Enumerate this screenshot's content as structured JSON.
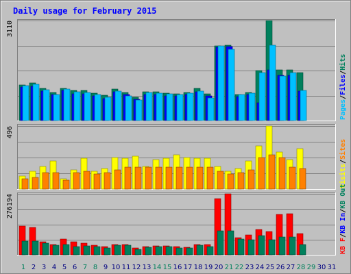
{
  "title": "Daily usage for February 2015",
  "colors": {
    "background": "#c0c0c0",
    "frame_dark": "#808080",
    "frame_light": "#ffffff",
    "title_text": "#0000ff",
    "weekday_text": "#000080",
    "weekend_text": "#00805c",
    "hits": "#00805c",
    "files": "#0000ff",
    "pages": "#00c0ff",
    "visits": "#ffff00",
    "sites": "#ff8000",
    "kbin": "#0000ff",
    "kbout": "#00805c",
    "kbf": "#ff0000",
    "separator": "#000000"
  },
  "chart_data": {
    "type": "bar",
    "title": "Daily usage for February 2015",
    "days": [
      "1",
      "2",
      "3",
      "4",
      "5",
      "6",
      "7",
      "8",
      "9",
      "10",
      "11",
      "12",
      "13",
      "14",
      "15",
      "16",
      "17",
      "18",
      "19",
      "20",
      "21",
      "22",
      "23",
      "24",
      "25",
      "26",
      "27",
      "28",
      "29",
      "30",
      "31"
    ],
    "weekend_days": [
      "1",
      "7",
      "8",
      "14",
      "15",
      "21",
      "22",
      "28",
      "29"
    ],
    "panels": [
      {
        "id": "top",
        "max_label": "3110",
        "ymax": 3110,
        "legend": [
          "Pages",
          "/",
          "Files",
          "/",
          "Hits"
        ],
        "series": [
          {
            "name": "Hits",
            "values": [
              1110,
              1180,
              1000,
              880,
              1010,
              930,
              930,
              860,
              780,
              970,
              870,
              720,
              900,
              890,
              860,
              840,
              880,
              1010,
              830,
              2330,
              2350,
              800,
              870,
              1550,
              3110,
              1580,
              1580,
              1500,
              0,
              0,
              0
            ]
          },
          {
            "name": "Files",
            "values": [
              1040,
              1070,
              920,
              800,
              940,
              840,
              840,
              760,
              690,
              890,
              800,
              660,
              810,
              800,
              760,
              770,
              800,
              900,
              760,
              2270,
              2300,
              740,
              810,
              560,
              1570,
              1400,
              1410,
              910,
              0,
              0,
              0
            ]
          },
          {
            "name": "Pages",
            "values": [
              1090,
              1130,
              960,
              820,
              990,
              900,
              880,
              820,
              720,
              920,
              760,
              640,
              870,
              850,
              830,
              820,
              860,
              910,
              700,
              2330,
              2220,
              800,
              850,
              1500,
              2350,
              1390,
              1500,
              940,
              0,
              0,
              0
            ]
          }
        ]
      },
      {
        "id": "middle",
        "max_label": "496",
        "ymax": 496,
        "legend": [
          "Visits",
          "/",
          "Sites"
        ],
        "series": [
          {
            "name": "Visits",
            "values": [
              100,
              140,
              180,
              220,
              80,
              150,
              240,
              140,
              160,
              250,
              240,
              260,
              180,
              230,
              240,
              270,
              250,
              240,
              240,
              180,
              140,
              160,
              220,
              340,
              496,
              290,
              230,
              320,
              0,
              0,
              0
            ]
          },
          {
            "name": "Sites",
            "values": [
              80,
              90,
              130,
              130,
              70,
              130,
              140,
              120,
              130,
              150,
              170,
              170,
              170,
              170,
              170,
              170,
              170,
              170,
              170,
              140,
              120,
              130,
              150,
              250,
              270,
              250,
              170,
              160,
              0,
              0,
              0
            ]
          }
        ]
      },
      {
        "id": "bottom",
        "max_label": "276194",
        "ymax": 276194,
        "legend": [
          "KB F",
          "/",
          "KB In",
          "/",
          "KB Out"
        ],
        "series": [
          {
            "name": "KB F",
            "values": [
              130000,
              125000,
              58000,
              48000,
              70000,
              59000,
              54000,
              42000,
              38000,
              46000,
              48000,
              31000,
              38000,
              40000,
              39000,
              38000,
              33000,
              48000,
              48000,
              256000,
              276194,
              78000,
              90000,
              114000,
              105000,
              184000,
              186000,
              95000,
              0,
              0,
              0
            ]
          },
          {
            "name": "KB Out",
            "values": [
              62000,
              62000,
              52000,
              44000,
              45000,
              38000,
              40000,
              36000,
              32000,
              43000,
              42000,
              26000,
              35000,
              36000,
              37000,
              32000,
              30000,
              42000,
              36000,
              108000,
              110000,
              72000,
              67000,
              86000,
              68000,
              80000,
              82000,
              45000,
              0,
              0,
              0
            ]
          }
        ]
      }
    ]
  }
}
